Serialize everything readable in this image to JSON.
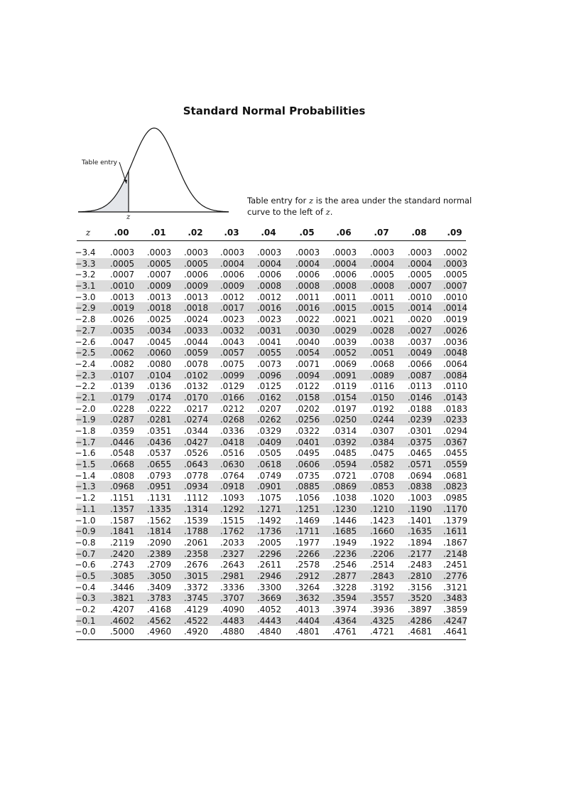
{
  "title": "Standard Normal Probabilities",
  "figure": {
    "entry_label": "Table entry",
    "z_label": "z"
  },
  "description": {
    "text_before": "Table entry for ",
    "var": "z",
    "text_mid": " is the area under the standard normal curve to the left of ",
    "var2": "z",
    "text_end": "."
  },
  "table": {
    "headers": [
      "z",
      ".00",
      ".01",
      ".02",
      ".03",
      ".04",
      ".05",
      ".06",
      ".07",
      ".08",
      ".09"
    ],
    "rows": [
      [
        "−3.4",
        ".0003",
        ".0003",
        ".0003",
        ".0003",
        ".0003",
        ".0003",
        ".0003",
        ".0003",
        ".0003",
        ".0002"
      ],
      [
        "−3.3",
        ".0005",
        ".0005",
        ".0005",
        ".0004",
        ".0004",
        ".0004",
        ".0004",
        ".0004",
        ".0004",
        ".0003"
      ],
      [
        "−3.2",
        ".0007",
        ".0007",
        ".0006",
        ".0006",
        ".0006",
        ".0006",
        ".0006",
        ".0005",
        ".0005",
        ".0005"
      ],
      [
        "−3.1",
        ".0010",
        ".0009",
        ".0009",
        ".0009",
        ".0008",
        ".0008",
        ".0008",
        ".0008",
        ".0007",
        ".0007"
      ],
      [
        "−3.0",
        ".0013",
        ".0013",
        ".0013",
        ".0012",
        ".0012",
        ".0011",
        ".0011",
        ".0011",
        ".0010",
        ".0010"
      ],
      [
        "−2.9",
        ".0019",
        ".0018",
        ".0018",
        ".0017",
        ".0016",
        ".0016",
        ".0015",
        ".0015",
        ".0014",
        ".0014"
      ],
      [
        "−2.8",
        ".0026",
        ".0025",
        ".0024",
        ".0023",
        ".0023",
        ".0022",
        ".0021",
        ".0021",
        ".0020",
        ".0019"
      ],
      [
        "−2.7",
        ".0035",
        ".0034",
        ".0033",
        ".0032",
        ".0031",
        ".0030",
        ".0029",
        ".0028",
        ".0027",
        ".0026"
      ],
      [
        "−2.6",
        ".0047",
        ".0045",
        ".0044",
        ".0043",
        ".0041",
        ".0040",
        ".0039",
        ".0038",
        ".0037",
        ".0036"
      ],
      [
        "−2.5",
        ".0062",
        ".0060",
        ".0059",
        ".0057",
        ".0055",
        ".0054",
        ".0052",
        ".0051",
        ".0049",
        ".0048"
      ],
      [
        "−2.4",
        ".0082",
        ".0080",
        ".0078",
        ".0075",
        ".0073",
        ".0071",
        ".0069",
        ".0068",
        ".0066",
        ".0064"
      ],
      [
        "−2.3",
        ".0107",
        ".0104",
        ".0102",
        ".0099",
        ".0096",
        ".0094",
        ".0091",
        ".0089",
        ".0087",
        ".0084"
      ],
      [
        "−2.2",
        ".0139",
        ".0136",
        ".0132",
        ".0129",
        ".0125",
        ".0122",
        ".0119",
        ".0116",
        ".0113",
        ".0110"
      ],
      [
        "−2.1",
        ".0179",
        ".0174",
        ".0170",
        ".0166",
        ".0162",
        ".0158",
        ".0154",
        ".0150",
        ".0146",
        ".0143"
      ],
      [
        "−2.0",
        ".0228",
        ".0222",
        ".0217",
        ".0212",
        ".0207",
        ".0202",
        ".0197",
        ".0192",
        ".0188",
        ".0183"
      ],
      [
        "−1.9",
        ".0287",
        ".0281",
        ".0274",
        ".0268",
        ".0262",
        ".0256",
        ".0250",
        ".0244",
        ".0239",
        ".0233"
      ],
      [
        "−1.8",
        ".0359",
        ".0351",
        ".0344",
        ".0336",
        ".0329",
        ".0322",
        ".0314",
        ".0307",
        ".0301",
        ".0294"
      ],
      [
        "−1.7",
        ".0446",
        ".0436",
        ".0427",
        ".0418",
        ".0409",
        ".0401",
        ".0392",
        ".0384",
        ".0375",
        ".0367"
      ],
      [
        "−1.6",
        ".0548",
        ".0537",
        ".0526",
        ".0516",
        ".0505",
        ".0495",
        ".0485",
        ".0475",
        ".0465",
        ".0455"
      ],
      [
        "−1.5",
        ".0668",
        ".0655",
        ".0643",
        ".0630",
        ".0618",
        ".0606",
        ".0594",
        ".0582",
        ".0571",
        ".0559"
      ],
      [
        "−1.4",
        ".0808",
        ".0793",
        ".0778",
        ".0764",
        ".0749",
        ".0735",
        ".0721",
        ".0708",
        ".0694",
        ".0681"
      ],
      [
        "−1.3",
        ".0968",
        ".0951",
        ".0934",
        ".0918",
        ".0901",
        ".0885",
        ".0869",
        ".0853",
        ".0838",
        ".0823"
      ],
      [
        "−1.2",
        ".1151",
        ".1131",
        ".1112",
        ".1093",
        ".1075",
        ".1056",
        ".1038",
        ".1020",
        ".1003",
        ".0985"
      ],
      [
        "−1.1",
        ".1357",
        ".1335",
        ".1314",
        ".1292",
        ".1271",
        ".1251",
        ".1230",
        ".1210",
        ".1190",
        ".1170"
      ],
      [
        "−1.0",
        ".1587",
        ".1562",
        ".1539",
        ".1515",
        ".1492",
        ".1469",
        ".1446",
        ".1423",
        ".1401",
        ".1379"
      ],
      [
        "−0.9",
        ".1841",
        ".1814",
        ".1788",
        ".1762",
        ".1736",
        ".1711",
        ".1685",
        ".1660",
        ".1635",
        ".1611"
      ],
      [
        "−0.8",
        ".2119",
        ".2090",
        ".2061",
        ".2033",
        ".2005",
        ".1977",
        ".1949",
        ".1922",
        ".1894",
        ".1867"
      ],
      [
        "−0.7",
        ".2420",
        ".2389",
        ".2358",
        ".2327",
        ".2296",
        ".2266",
        ".2236",
        ".2206",
        ".2177",
        ".2148"
      ],
      [
        "−0.6",
        ".2743",
        ".2709",
        ".2676",
        ".2643",
        ".2611",
        ".2578",
        ".2546",
        ".2514",
        ".2483",
        ".2451"
      ],
      [
        "−0.5",
        ".3085",
        ".3050",
        ".3015",
        ".2981",
        ".2946",
        ".2912",
        ".2877",
        ".2843",
        ".2810",
        ".2776"
      ],
      [
        "−0.4",
        ".3446",
        ".3409",
        ".3372",
        ".3336",
        ".3300",
        ".3264",
        ".3228",
        ".3192",
        ".3156",
        ".3121"
      ],
      [
        "−0.3",
        ".3821",
        ".3783",
        ".3745",
        ".3707",
        ".3669",
        ".3632",
        ".3594",
        ".3557",
        ".3520",
        ".3483"
      ],
      [
        "−0.2",
        ".4207",
        ".4168",
        ".4129",
        ".4090",
        ".4052",
        ".4013",
        ".3974",
        ".3936",
        ".3897",
        ".3859"
      ],
      [
        "−0.1",
        ".4602",
        ".4562",
        ".4522",
        ".4483",
        ".4443",
        ".4404",
        ".4364",
        ".4325",
        ".4286",
        ".4247"
      ],
      [
        "−0.0",
        ".5000",
        ".4960",
        ".4920",
        ".4880",
        ".4840",
        ".4801",
        ".4761",
        ".4721",
        ".4681",
        ".4641"
      ]
    ]
  },
  "colors": {
    "shade": "#dcdcdc",
    "curve_fill": "#e4e6ea"
  }
}
